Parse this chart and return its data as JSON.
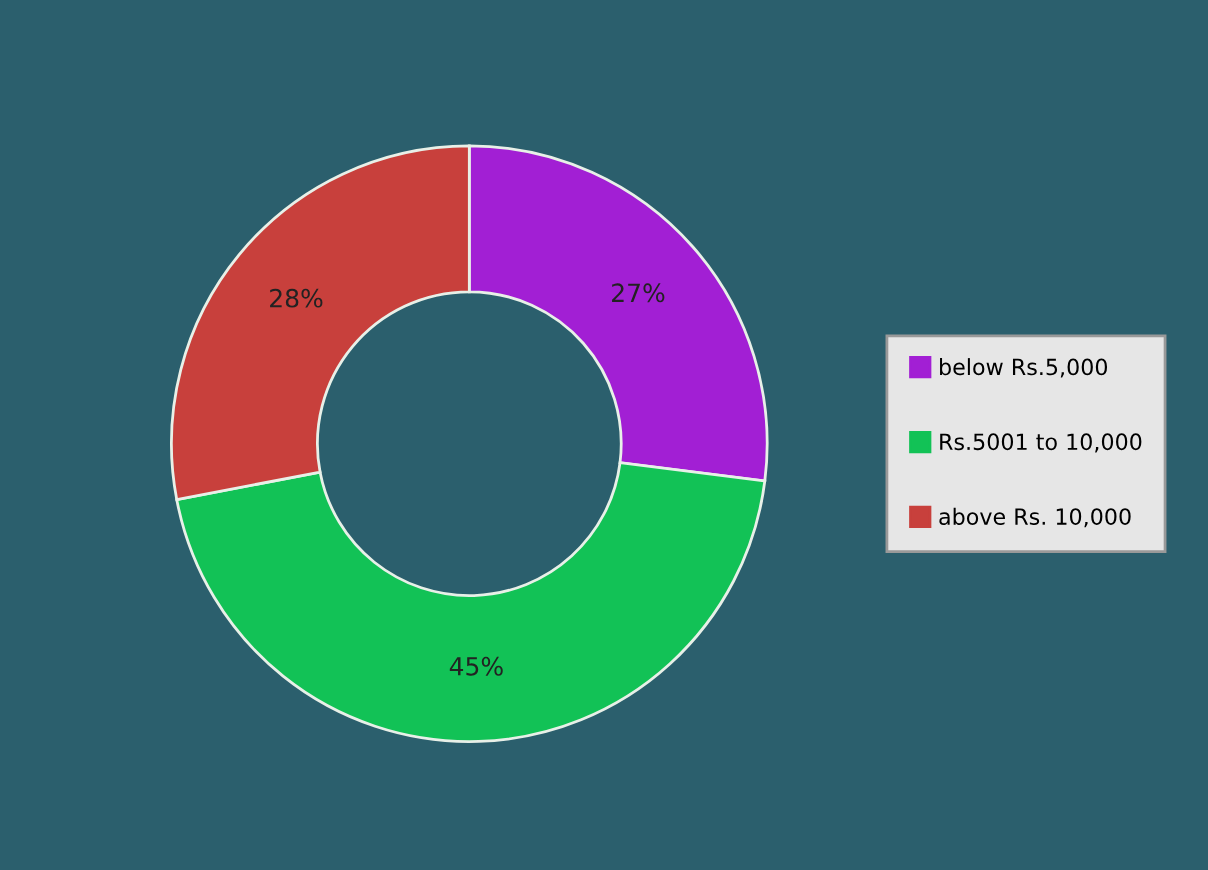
{
  "chart_data": {
    "type": "donut",
    "categories": [
      "below Rs.5,000",
      "Rs.5001 to 10,000",
      "above Rs. 10,000"
    ],
    "values": [
      27,
      45,
      28
    ],
    "colors": [
      "#a21fd4",
      "#12c256",
      "#c8403c"
    ],
    "value_labels": [
      "27%",
      "45%",
      "28%"
    ],
    "legend": "right"
  }
}
